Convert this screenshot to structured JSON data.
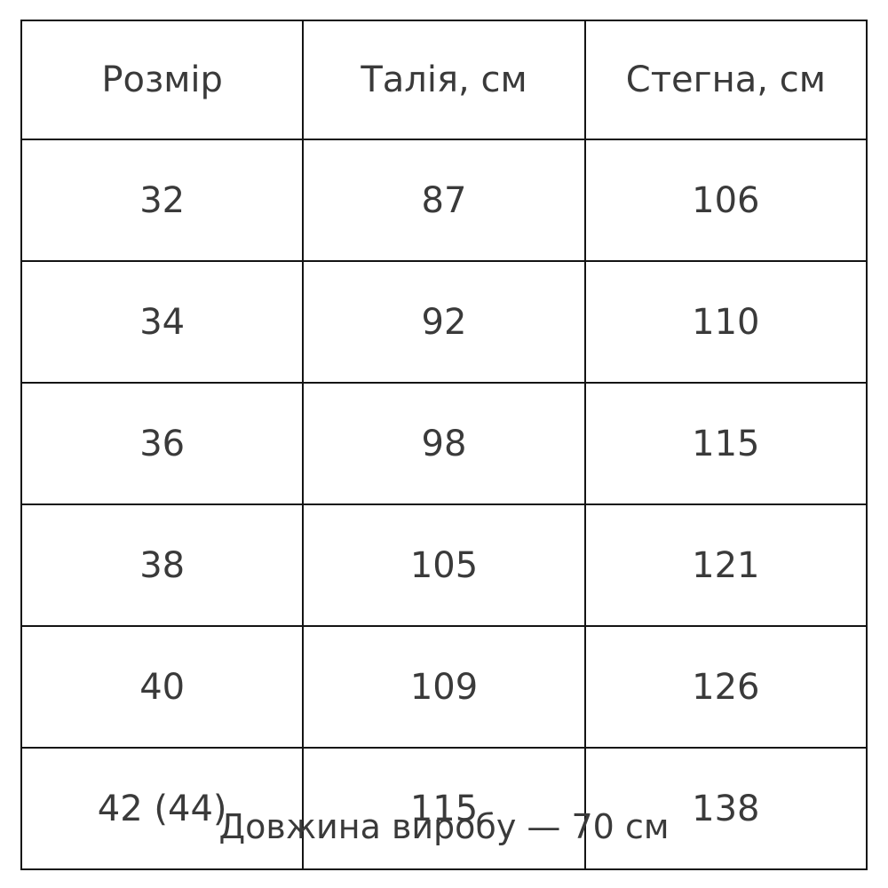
{
  "table": {
    "headers": [
      "Розмір",
      "Талія, см",
      "Стегна, см"
    ],
    "rows": [
      [
        "32",
        "87",
        "106"
      ],
      [
        "34",
        "92",
        "110"
      ],
      [
        "36",
        "98",
        "115"
      ],
      [
        "38",
        "105",
        "121"
      ],
      [
        "40",
        "109",
        "126"
      ],
      [
        "42 (44)",
        "115",
        "138"
      ]
    ]
  },
  "caption": "Довжина виробу — 70 см",
  "colors": {
    "text": "#3a3a3a",
    "border": "#141414",
    "background": "#ffffff"
  }
}
